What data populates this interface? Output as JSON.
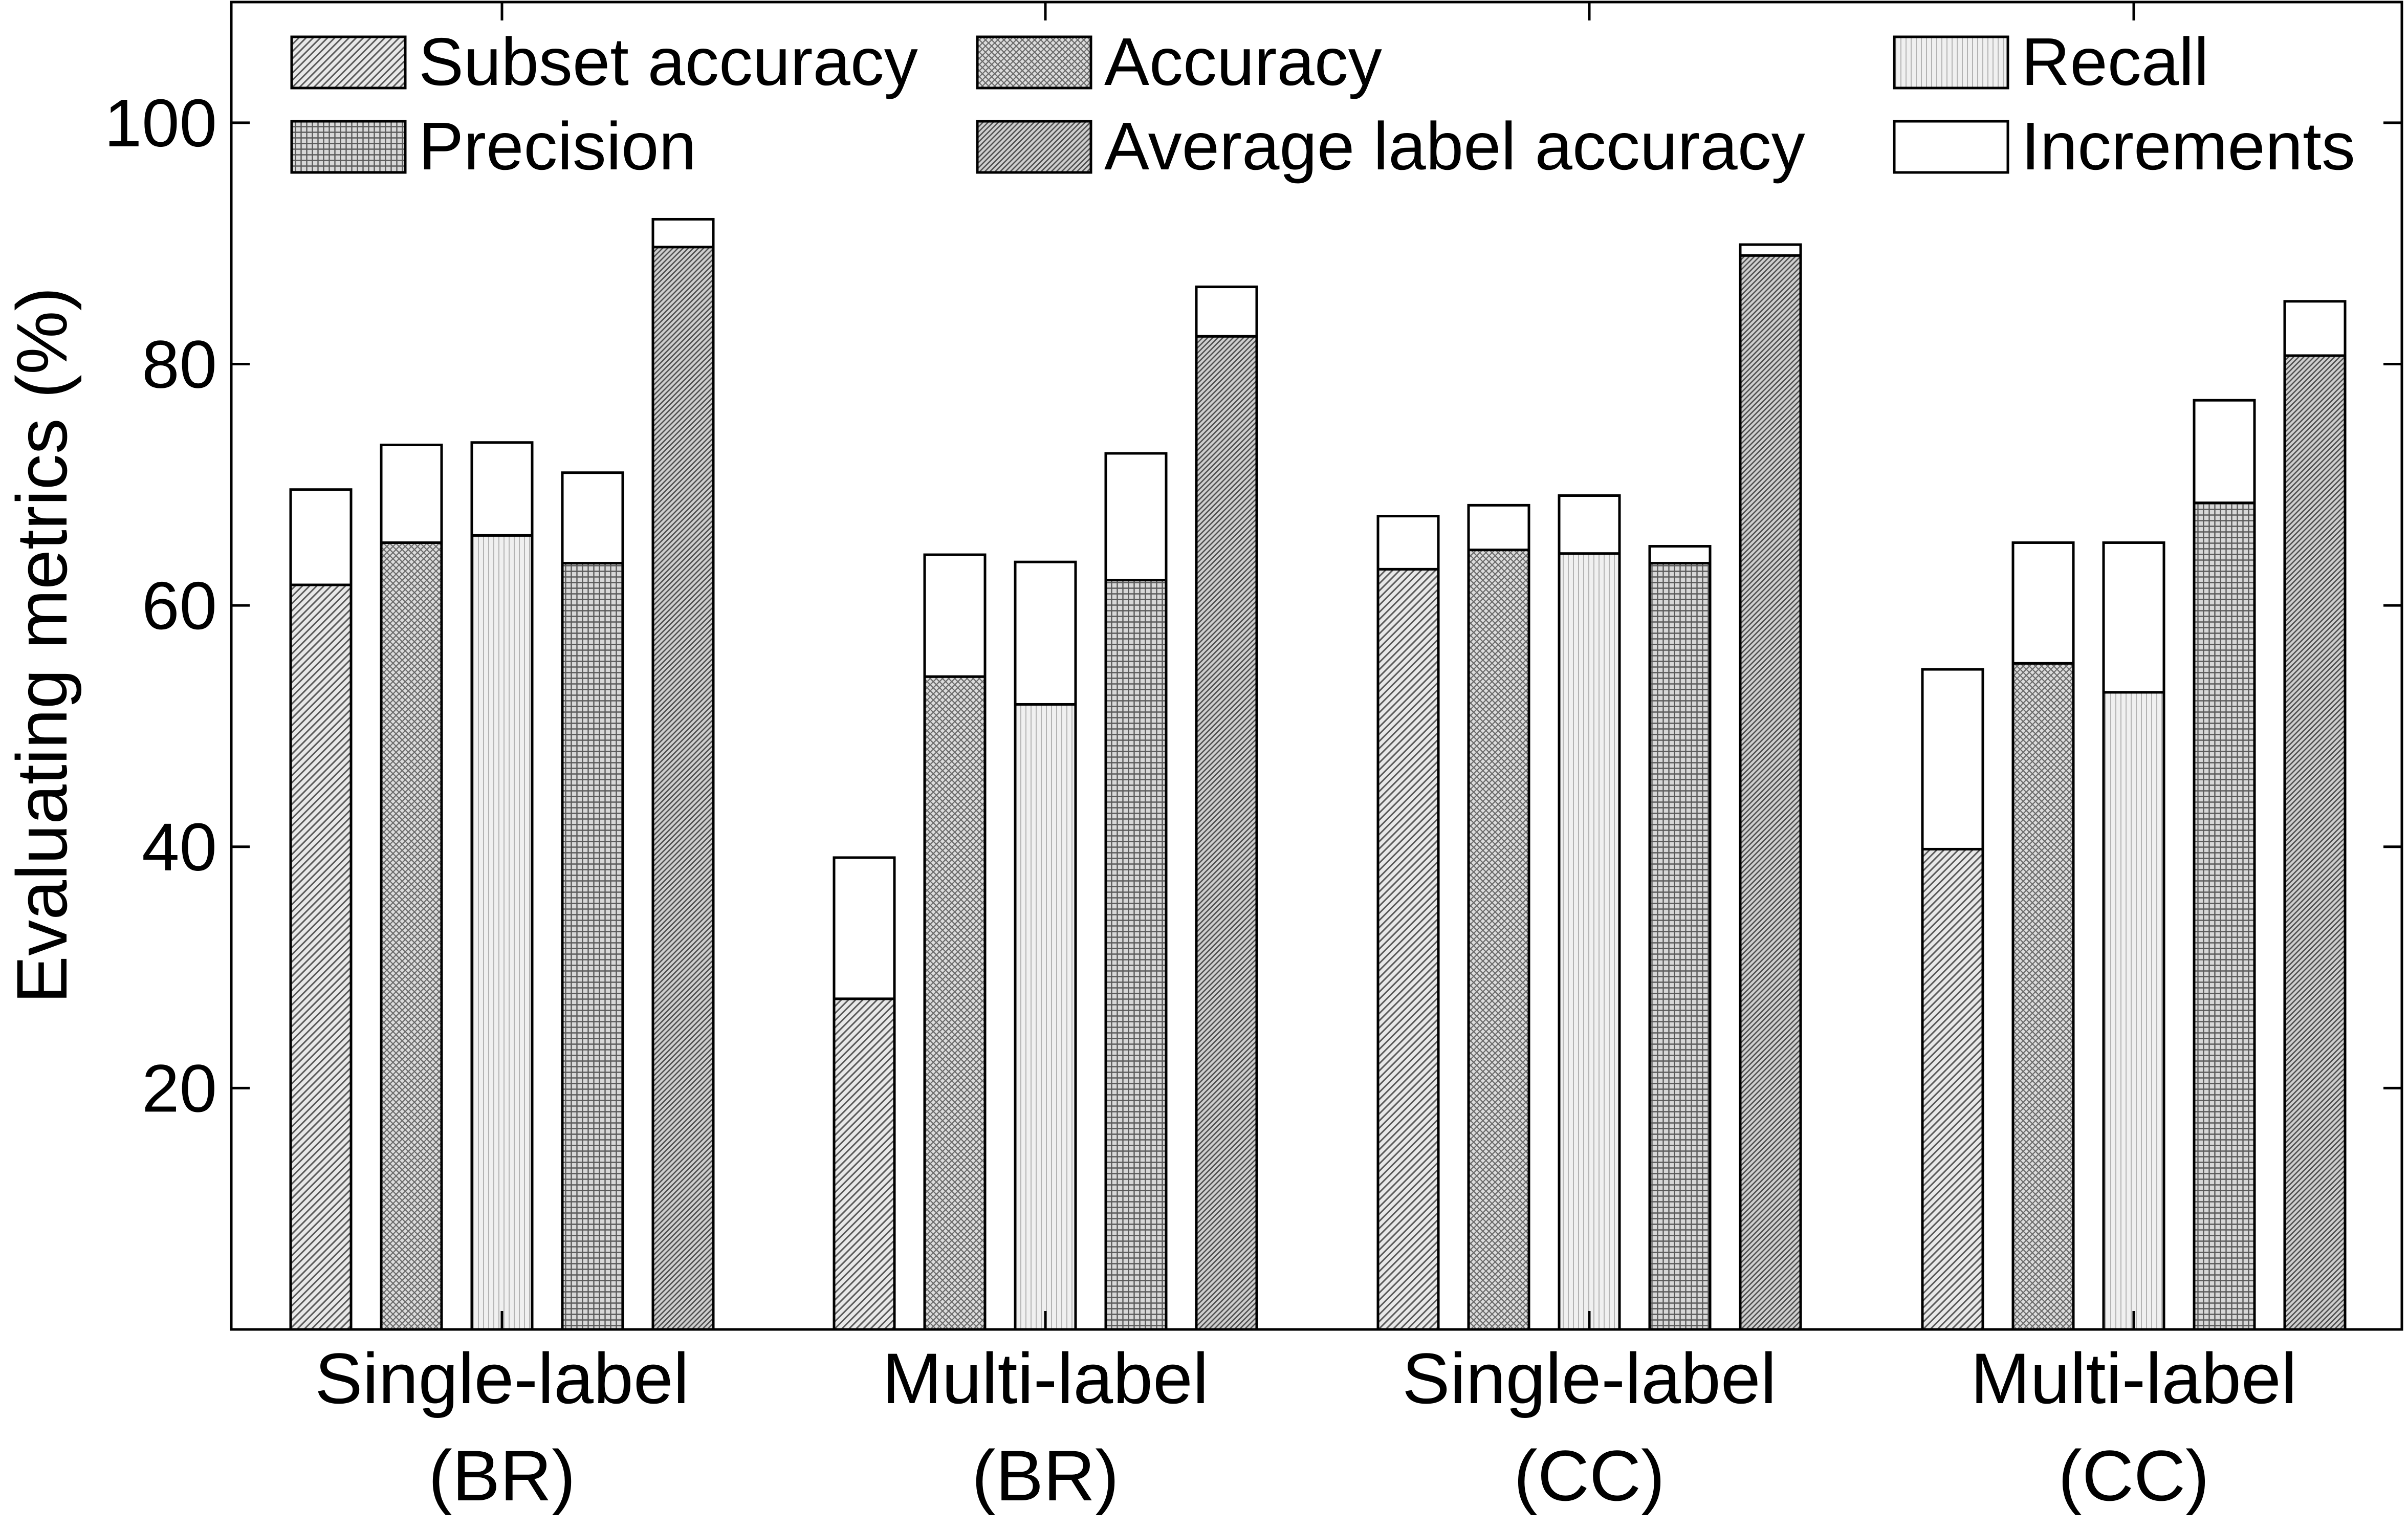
{
  "chart_data": {
    "type": "bar",
    "stacked_increment": true,
    "ylabel": "Evaluating metrics (%)",
    "ylim": [
      0,
      110
    ],
    "yticks": [
      20,
      40,
      60,
      80,
      100
    ],
    "grid": false,
    "legend_position": "top",
    "categories": [
      [
        "Single-label",
        "(BR)"
      ],
      [
        "Multi-label",
        "(BR)"
      ],
      [
        "Single-label",
        "(CC)"
      ],
      [
        "Multi-label",
        "(CC)"
      ]
    ],
    "series": [
      {
        "name": "Subset accuracy",
        "pattern": "diag-fine",
        "values": [
          61.7,
          27.4,
          63.0,
          39.8
        ]
      },
      {
        "name": "Accuracy",
        "pattern": "cross-diag",
        "values": [
          65.2,
          54.1,
          64.6,
          55.2
        ]
      },
      {
        "name": "Recall",
        "pattern": "vertical-lines",
        "values": [
          65.8,
          51.8,
          64.3,
          52.8
        ]
      },
      {
        "name": "Precision",
        "pattern": "grid",
        "values": [
          63.5,
          62.1,
          63.5,
          68.5
        ]
      },
      {
        "name": "Average label accuracy",
        "pattern": "diag-dense",
        "values": [
          89.7,
          82.3,
          89.0,
          80.7
        ]
      }
    ],
    "increments": {
      "name": "Increments",
      "values": [
        [
          7.9,
          8.1,
          7.7,
          7.5,
          2.3
        ],
        [
          11.7,
          10.1,
          11.8,
          10.5,
          4.1
        ],
        [
          4.4,
          3.7,
          4.8,
          1.4,
          0.9
        ],
        [
          14.9,
          10.0,
          12.4,
          8.5,
          4.5
        ]
      ]
    }
  },
  "colors": {
    "axis": "#000000",
    "increment_fill": "#ffffff"
  }
}
